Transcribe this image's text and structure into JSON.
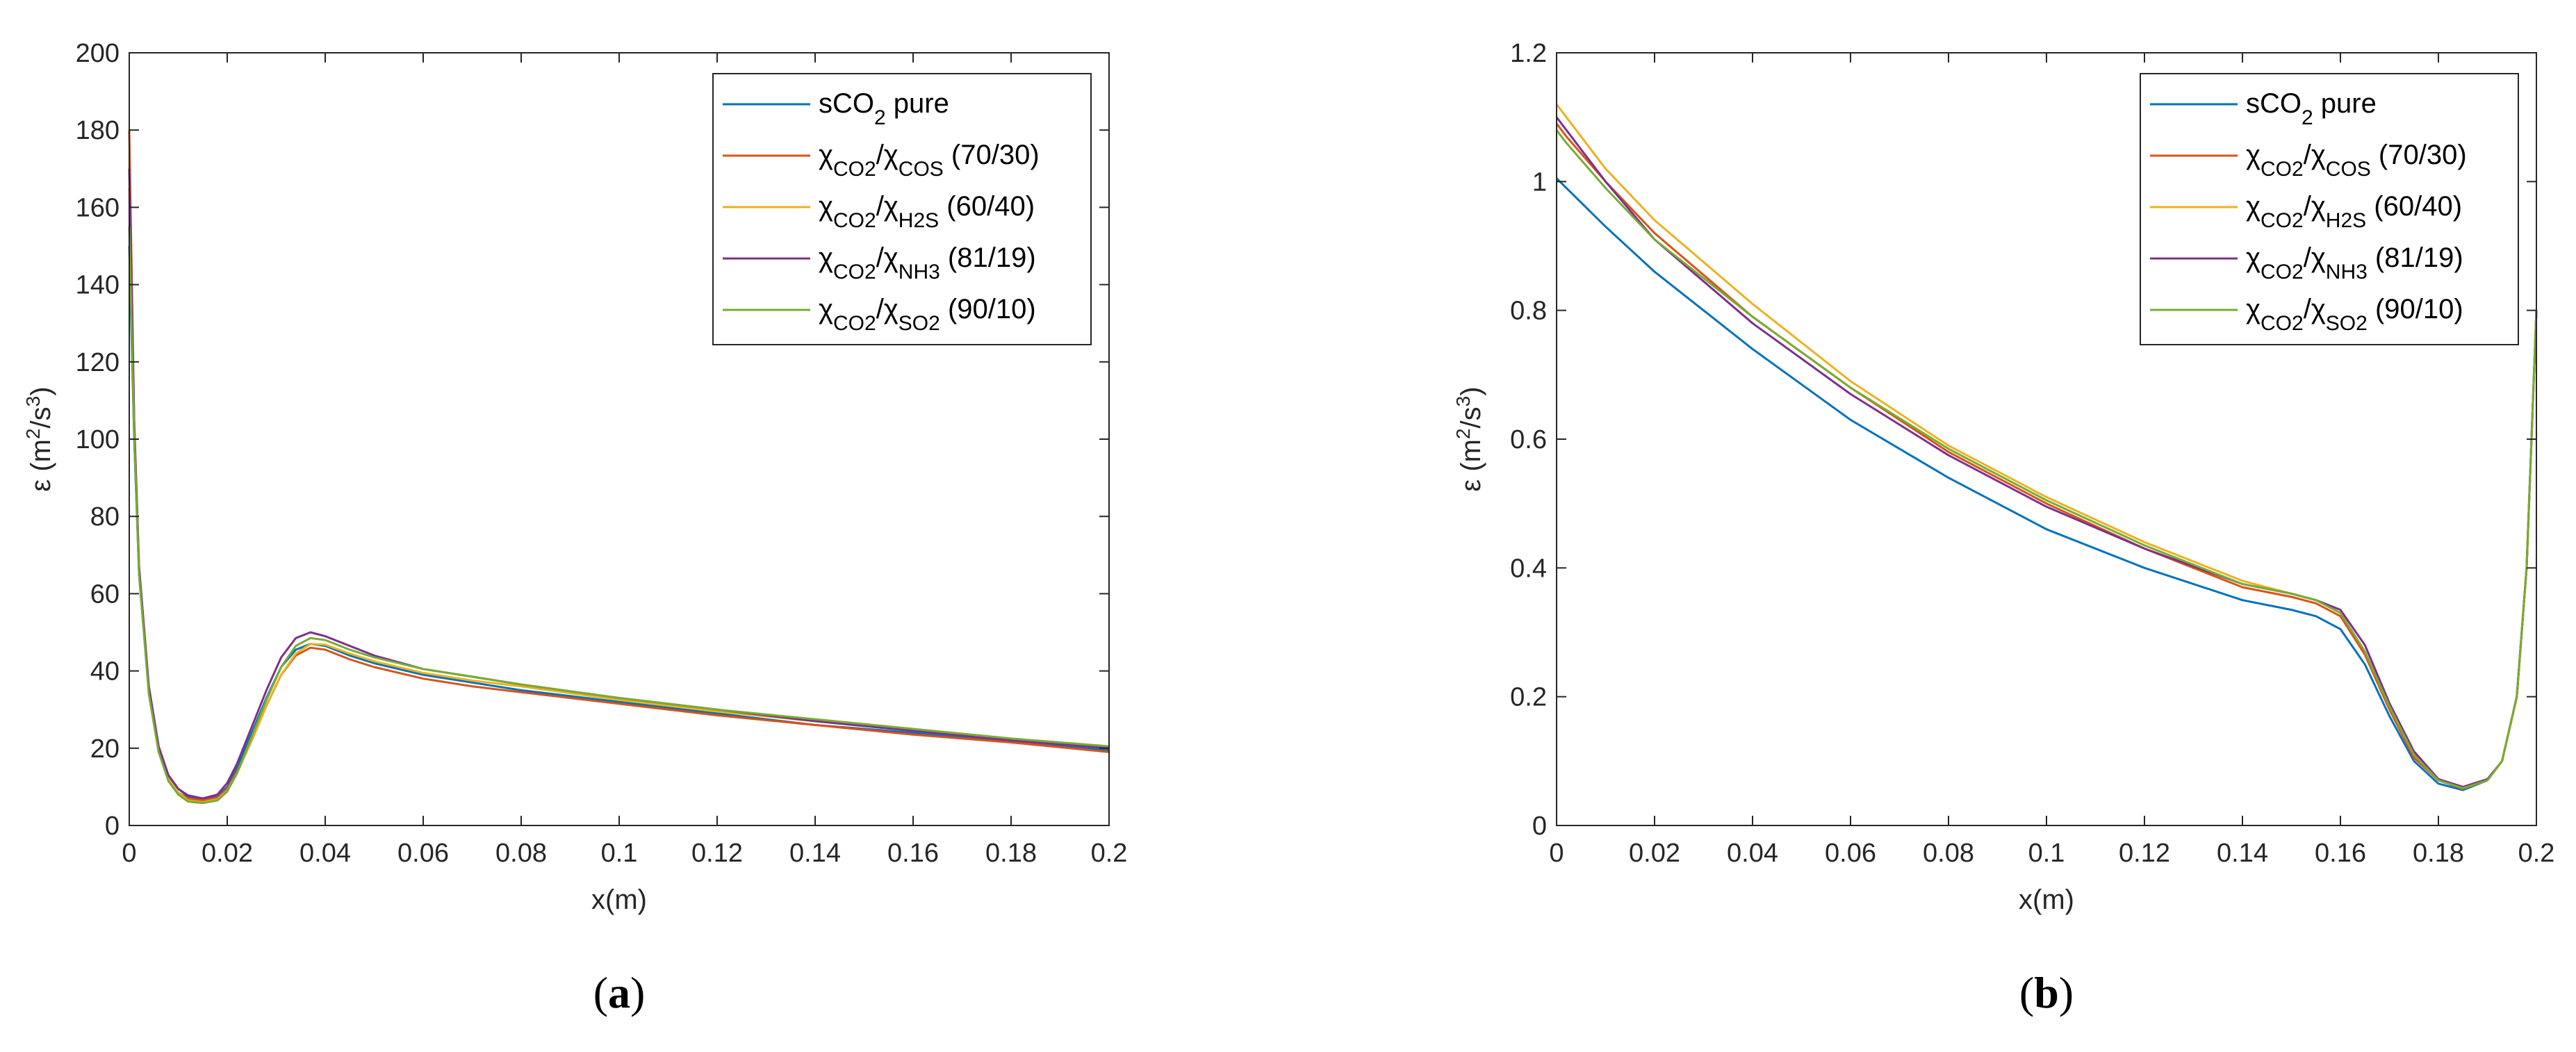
{
  "colors": {
    "sco2_pure": "#0072BD",
    "cos": "#D95319",
    "h2s": "#EDB120",
    "nh3": "#7E2F8E",
    "so2": "#77AC30",
    "axis": "#262626"
  },
  "legend": [
    {
      "key": "sco2_pure",
      "parts": [
        {
          "t": "sCO"
        },
        {
          "t": "2",
          "sub": true
        },
        {
          "t": " pure"
        }
      ]
    },
    {
      "key": "cos",
      "parts": [
        {
          "t": "χ"
        },
        {
          "t": "CO2",
          "sub": true
        },
        {
          "t": "/χ"
        },
        {
          "t": "COS",
          "sub": true
        },
        {
          "t": " (70/30)"
        }
      ]
    },
    {
      "key": "h2s",
      "parts": [
        {
          "t": "χ"
        },
        {
          "t": "CO2",
          "sub": true
        },
        {
          "t": "/χ"
        },
        {
          "t": "H2S",
          "sub": true
        },
        {
          "t": " (60/40)"
        }
      ]
    },
    {
      "key": "nh3",
      "parts": [
        {
          "t": "χ"
        },
        {
          "t": "CO2",
          "sub": true
        },
        {
          "t": "/χ"
        },
        {
          "t": "NH3",
          "sub": true
        },
        {
          "t": " (81/19)"
        }
      ]
    },
    {
      "key": "so2",
      "parts": [
        {
          "t": "χ"
        },
        {
          "t": "CO2",
          "sub": true
        },
        {
          "t": "/χ"
        },
        {
          "t": "SO2",
          "sub": true
        },
        {
          "t": " (90/10)"
        }
      ]
    }
  ],
  "chart_data": [
    {
      "id": "a",
      "type": "line",
      "caption": {
        "open": "(",
        "letter": "a",
        "close": ")"
      },
      "xlabel": "x(m)",
      "ylabel": {
        "pre": "ε  (m",
        "sup1": "2",
        "mid": "/s",
        "sup2": "3",
        "post": ")"
      },
      "xlim": [
        0,
        0.2
      ],
      "ylim": [
        0,
        200
      ],
      "xticks": [
        0,
        0.02,
        0.04,
        0.06,
        0.08,
        0.1,
        0.12,
        0.14,
        0.16,
        0.18,
        0.2
      ],
      "xtick_labels": [
        "0",
        "0.02",
        "0.04",
        "0.06",
        "0.08",
        "0.1",
        "0.12",
        "0.14",
        "0.16",
        "0.18",
        "0.2"
      ],
      "yticks": [
        0,
        20,
        40,
        60,
        80,
        100,
        120,
        140,
        160,
        180,
        200
      ],
      "ytick_labels": [
        "0",
        "20",
        "40",
        "60",
        "80",
        "100",
        "120",
        "140",
        "160",
        "180",
        "200"
      ],
      "legend_position": "top-right",
      "grid": false,
      "series": [
        {
          "key": "sco2_pure",
          "x": [
            0,
            0.001,
            0.002,
            0.004,
            0.006,
            0.008,
            0.01,
            0.012,
            0.015,
            0.018,
            0.02,
            0.022,
            0.025,
            0.028,
            0.031,
            0.034,
            0.037,
            0.04,
            0.045,
            0.05,
            0.06,
            0.07,
            0.08,
            0.1,
            0.12,
            0.14,
            0.16,
            0.18,
            0.2
          ],
          "y": [
            150,
            100,
            65,
            35,
            20,
            13,
            9.5,
            7.5,
            6.8,
            7.5,
            10,
            15,
            24,
            33,
            41,
            45.5,
            47,
            46.5,
            44,
            42,
            39,
            37,
            35,
            32,
            29,
            26,
            24,
            21.5,
            19.5
          ]
        },
        {
          "key": "cos",
          "x": [
            0,
            0.001,
            0.002,
            0.004,
            0.006,
            0.008,
            0.01,
            0.012,
            0.015,
            0.018,
            0.02,
            0.022,
            0.025,
            0.028,
            0.031,
            0.034,
            0.037,
            0.04,
            0.045,
            0.05,
            0.06,
            0.07,
            0.08,
            0.1,
            0.12,
            0.14,
            0.16,
            0.18,
            0.2
          ],
          "y": [
            180,
            105,
            67,
            35,
            19,
            12,
            8.5,
            7,
            6.5,
            7.2,
            9.5,
            14,
            22,
            31,
            39,
            44,
            46,
            45.5,
            43,
            41,
            38,
            36,
            34.5,
            31.5,
            28.5,
            26,
            23.5,
            21.5,
            19
          ]
        },
        {
          "key": "h2s",
          "x": [
            0,
            0.001,
            0.002,
            0.004,
            0.006,
            0.008,
            0.01,
            0.012,
            0.015,
            0.018,
            0.02,
            0.022,
            0.025,
            0.028,
            0.031,
            0.034,
            0.037,
            0.04,
            0.045,
            0.05,
            0.06,
            0.07,
            0.08,
            0.1,
            0.12,
            0.14,
            0.16,
            0.18,
            0.2
          ],
          "y": [
            165,
            102,
            66,
            35,
            19.5,
            12,
            8.5,
            6.5,
            6,
            6.8,
            9,
            13.5,
            22,
            31,
            39,
            44.5,
            47,
            46.8,
            44.5,
            42.5,
            39.5,
            37.5,
            36,
            32.5,
            29.5,
            27,
            24.5,
            22,
            20
          ]
        },
        {
          "key": "nh3",
          "x": [
            0,
            0.001,
            0.002,
            0.004,
            0.006,
            0.008,
            0.01,
            0.012,
            0.015,
            0.018,
            0.02,
            0.022,
            0.025,
            0.028,
            0.031,
            0.034,
            0.037,
            0.04,
            0.045,
            0.05,
            0.06,
            0.07,
            0.08,
            0.1,
            0.12,
            0.14,
            0.16,
            0.18,
            0.2
          ],
          "y": [
            170,
            104,
            67,
            36,
            20.5,
            13,
            9.5,
            7.8,
            7,
            8,
            11,
            16,
            25.5,
            35,
            43.5,
            48.5,
            50,
            49,
            46.5,
            44,
            40.5,
            38.5,
            36.5,
            33,
            30,
            27,
            24.5,
            22,
            20
          ]
        },
        {
          "key": "so2",
          "x": [
            0,
            0.001,
            0.002,
            0.004,
            0.006,
            0.008,
            0.01,
            0.012,
            0.015,
            0.018,
            0.02,
            0.022,
            0.025,
            0.028,
            0.031,
            0.034,
            0.037,
            0.04,
            0.045,
            0.05,
            0.06,
            0.07,
            0.08,
            0.1,
            0.12,
            0.14,
            0.16,
            0.18,
            0.2
          ],
          "y": [
            155,
            101,
            65,
            34,
            19,
            11.5,
            8,
            6.2,
            5.8,
            6.5,
            8.8,
            13.5,
            23,
            32.5,
            41,
            46.5,
            48.5,
            48,
            45.5,
            43.5,
            40.5,
            38.5,
            36.5,
            33,
            30,
            27.5,
            25,
            22.5,
            20.5
          ]
        }
      ]
    },
    {
      "id": "b",
      "type": "line",
      "caption": {
        "open": "(",
        "letter": "b",
        "close": ")"
      },
      "xlabel": "x(m)",
      "ylabel": {
        "pre": "ε  (m",
        "sup1": "2",
        "mid": "/s",
        "sup2": "3",
        "post": ")"
      },
      "xlim": [
        0,
        0.2
      ],
      "ylim": [
        0,
        1.2
      ],
      "xticks": [
        0,
        0.02,
        0.04,
        0.06,
        0.08,
        0.1,
        0.12,
        0.14,
        0.16,
        0.18,
        0.2
      ],
      "xtick_labels": [
        "0",
        "0.02",
        "0.04",
        "0.06",
        "0.08",
        "0.1",
        "0.12",
        "0.14",
        "0.16",
        "0.18",
        "0.2"
      ],
      "yticks": [
        0,
        0.2,
        0.4,
        0.6,
        0.8,
        1,
        1.2
      ],
      "ytick_labels": [
        "0",
        "0.2",
        "0.4",
        "0.6",
        "0.8",
        "1",
        "1.2"
      ],
      "legend_position": "top-right",
      "grid": false,
      "series": [
        {
          "key": "sco2_pure",
          "x": [
            0,
            0.002,
            0.01,
            0.02,
            0.04,
            0.06,
            0.08,
            0.1,
            0.12,
            0.14,
            0.15,
            0.155,
            0.16,
            0.165,
            0.17,
            0.175,
            0.18,
            0.185,
            0.19,
            0.193,
            0.196,
            0.198,
            0.2
          ],
          "y": [
            1.005,
            0.99,
            0.93,
            0.86,
            0.74,
            0.63,
            0.54,
            0.46,
            0.4,
            0.35,
            0.335,
            0.325,
            0.305,
            0.25,
            0.17,
            0.1,
            0.065,
            0.055,
            0.07,
            0.1,
            0.2,
            0.4,
            0.8
          ]
        },
        {
          "key": "cos",
          "x": [
            0,
            0.002,
            0.01,
            0.02,
            0.04,
            0.06,
            0.08,
            0.1,
            0.12,
            0.14,
            0.15,
            0.155,
            0.16,
            0.165,
            0.17,
            0.175,
            0.18,
            0.185,
            0.19,
            0.193,
            0.196,
            0.198,
            0.2
          ],
          "y": [
            1.09,
            1.07,
            1.0,
            0.92,
            0.79,
            0.68,
            0.58,
            0.5,
            0.43,
            0.37,
            0.355,
            0.345,
            0.325,
            0.265,
            0.18,
            0.105,
            0.07,
            0.057,
            0.07,
            0.1,
            0.2,
            0.4,
            0.8
          ]
        },
        {
          "key": "h2s",
          "x": [
            0,
            0.002,
            0.01,
            0.02,
            0.04,
            0.06,
            0.08,
            0.1,
            0.12,
            0.14,
            0.15,
            0.155,
            0.16,
            0.165,
            0.17,
            0.175,
            0.18,
            0.185,
            0.19,
            0.193,
            0.196,
            0.198,
            0.2
          ],
          "y": [
            1.12,
            1.1,
            1.02,
            0.94,
            0.81,
            0.69,
            0.59,
            0.51,
            0.44,
            0.38,
            0.36,
            0.35,
            0.33,
            0.27,
            0.185,
            0.11,
            0.07,
            0.058,
            0.07,
            0.1,
            0.2,
            0.4,
            0.8
          ]
        },
        {
          "key": "nh3",
          "x": [
            0,
            0.002,
            0.01,
            0.02,
            0.04,
            0.06,
            0.08,
            0.1,
            0.12,
            0.14,
            0.15,
            0.155,
            0.16,
            0.165,
            0.17,
            0.175,
            0.18,
            0.185,
            0.19,
            0.193,
            0.196,
            0.198,
            0.2
          ],
          "y": [
            1.1,
            1.08,
            1.0,
            0.91,
            0.78,
            0.67,
            0.575,
            0.495,
            0.43,
            0.375,
            0.36,
            0.35,
            0.335,
            0.28,
            0.19,
            0.115,
            0.072,
            0.06,
            0.072,
            0.1,
            0.2,
            0.4,
            0.8
          ]
        },
        {
          "key": "so2",
          "x": [
            0,
            0.002,
            0.01,
            0.02,
            0.04,
            0.06,
            0.08,
            0.1,
            0.12,
            0.14,
            0.15,
            0.155,
            0.16,
            0.165,
            0.17,
            0.175,
            0.18,
            0.185,
            0.19,
            0.193,
            0.196,
            0.198,
            0.2
          ],
          "y": [
            1.08,
            1.06,
            0.99,
            0.91,
            0.79,
            0.68,
            0.585,
            0.505,
            0.435,
            0.375,
            0.36,
            0.35,
            0.33,
            0.27,
            0.185,
            0.11,
            0.07,
            0.058,
            0.07,
            0.1,
            0.2,
            0.4,
            0.8
          ]
        }
      ]
    }
  ]
}
